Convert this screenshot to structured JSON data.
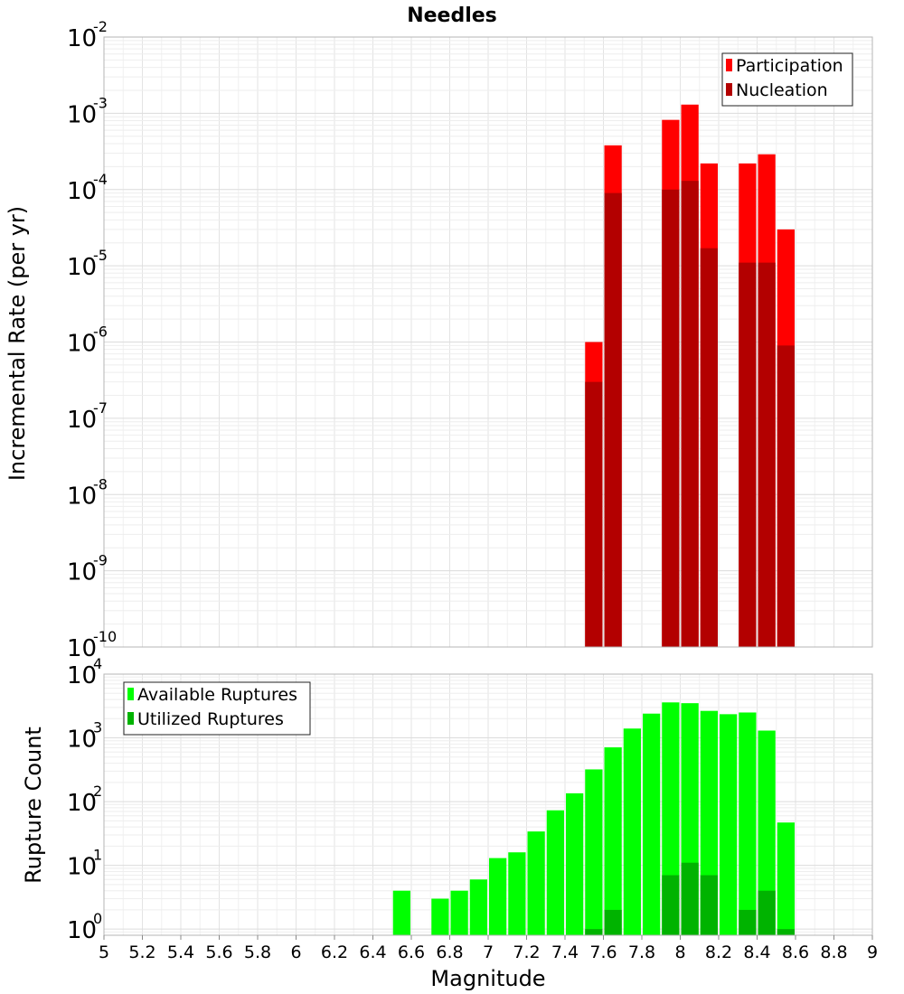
{
  "chart_data": [
    {
      "type": "bar",
      "title": "Needles",
      "ylabel": "Incremental Rate (per yr)",
      "xlabel": "",
      "xlim": [
        5,
        9
      ],
      "ylim": [
        1e-10,
        0.01
      ],
      "yscale": "log",
      "grid": true,
      "legend_position": "top-right",
      "y_tick_exponents": [
        "-10",
        "-9",
        "-8",
        "-7",
        "-6",
        "-5",
        "-4",
        "-3",
        "-2"
      ],
      "x": [
        7.55,
        7.65,
        7.95,
        8.05,
        8.15,
        8.35,
        8.45,
        8.55
      ],
      "series": [
        {
          "name": "Participation",
          "color": "#ff0000",
          "values": [
            1e-06,
            0.00038,
            0.00082,
            0.0013,
            0.00022,
            0.00022,
            0.00029,
            3e-05
          ]
        },
        {
          "name": "Nucleation",
          "color": "#b30000",
          "values": [
            3e-07,
            9e-05,
            0.0001,
            0.00013,
            1.7e-05,
            1.1e-05,
            1.1e-05,
            9e-07
          ]
        }
      ]
    },
    {
      "type": "bar",
      "title": "",
      "ylabel": "Rupture Count",
      "xlabel": "Magnitude",
      "xlim": [
        5,
        9
      ],
      "ylim": [
        0.8,
        10000
      ],
      "yscale": "log",
      "grid": true,
      "legend_position": "top-left",
      "x_ticks": [
        "5",
        "5.2",
        "5.4",
        "5.6",
        "5.8",
        "6",
        "6.2",
        "6.4",
        "6.6",
        "6.8",
        "7",
        "7.2",
        "7.4",
        "7.6",
        "7.8",
        "8",
        "8.2",
        "8.4",
        "8.6",
        "8.8",
        "9"
      ],
      "y_tick_exponents": [
        "0",
        "1",
        "2",
        "3",
        "4"
      ],
      "x": [
        6.55,
        6.75,
        6.85,
        6.95,
        7.05,
        7.15,
        7.25,
        7.35,
        7.45,
        7.55,
        7.65,
        7.75,
        7.85,
        7.95,
        8.05,
        8.15,
        8.25,
        8.35,
        8.45,
        8.55
      ],
      "series": [
        {
          "name": "Available Ruptures",
          "color": "#00ff00",
          "values": [
            4,
            3,
            4,
            6,
            13,
            16,
            34,
            73,
            135,
            320,
            710,
            1400,
            2400,
            3600,
            3500,
            2650,
            2350,
            2500,
            1300,
            47
          ]
        },
        {
          "name": "Utilized Ruptures",
          "color": "#00b300",
          "values": [
            0,
            0,
            0,
            0,
            0,
            0,
            0,
            0,
            0,
            1,
            2,
            0,
            0,
            7,
            11,
            7,
            0,
            2,
            4,
            1
          ]
        }
      ]
    }
  ]
}
